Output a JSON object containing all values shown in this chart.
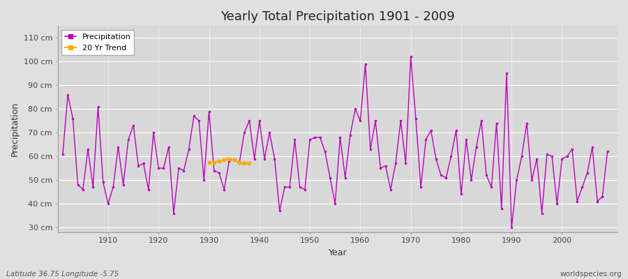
{
  "title": "Yearly Total Precipitation 1901 - 2009",
  "xlabel": "Year",
  "ylabel": "Precipitation",
  "bg_color": "#e0e0e0",
  "plot_bg_color": "#d8d8d8",
  "line_color": "#bb00bb",
  "trend_color": "#ffaa00",
  "legend_labels": [
    "Precipitation",
    "20 Yr Trend"
  ],
  "ylim": [
    28,
    115
  ],
  "yticks": [
    30,
    40,
    50,
    60,
    70,
    80,
    90,
    100,
    110
  ],
  "ytick_labels": [
    "30 cm",
    "40 cm",
    "50 cm",
    "60 cm",
    "70 cm",
    "80 cm",
    "90 cm",
    "100 cm",
    "110 cm"
  ],
  "footer_left": "Latitude 36.75 Longitude -5.75",
  "footer_right": "worldspecies.org",
  "years": [
    1901,
    1902,
    1903,
    1904,
    1905,
    1906,
    1907,
    1908,
    1909,
    1910,
    1911,
    1912,
    1913,
    1914,
    1915,
    1916,
    1917,
    1918,
    1919,
    1920,
    1921,
    1922,
    1923,
    1924,
    1925,
    1926,
    1927,
    1928,
    1929,
    1930,
    1931,
    1932,
    1933,
    1934,
    1935,
    1936,
    1937,
    1938,
    1939,
    1940,
    1941,
    1942,
    1943,
    1944,
    1945,
    1946,
    1947,
    1948,
    1949,
    1950,
    1951,
    1952,
    1953,
    1954,
    1955,
    1956,
    1957,
    1958,
    1959,
    1960,
    1961,
    1962,
    1963,
    1964,
    1965,
    1966,
    1967,
    1968,
    1969,
    1970,
    1971,
    1972,
    1973,
    1974,
    1975,
    1976,
    1977,
    1978,
    1979,
    1980,
    1981,
    1982,
    1983,
    1984,
    1985,
    1986,
    1987,
    1988,
    1989,
    1990,
    1991,
    1992,
    1993,
    1994,
    1995,
    1996,
    1997,
    1998,
    1999,
    2000,
    2001,
    2002,
    2003,
    2004,
    2005,
    2006,
    2007,
    2008,
    2009
  ],
  "precip": [
    61,
    86,
    76,
    48,
    46,
    63,
    47,
    81,
    49,
    40,
    47,
    64,
    48,
    67,
    73,
    56,
    57,
    46,
    70,
    55,
    55,
    64,
    36,
    55,
    54,
    63,
    77,
    75,
    50,
    79,
    54,
    53,
    46,
    58,
    59,
    57,
    70,
    75,
    59,
    75,
    59,
    70,
    59,
    37,
    47,
    47,
    67,
    47,
    46,
    67,
    68,
    68,
    62,
    51,
    40,
    68,
    51,
    69,
    80,
    75,
    99,
    63,
    75,
    55,
    56,
    46,
    57,
    75,
    57,
    102,
    76,
    47,
    67,
    71,
    59,
    52,
    51,
    60,
    71,
    44,
    67,
    50,
    64,
    75,
    52,
    47,
    74,
    38,
    95,
    30,
    50,
    60,
    74,
    50,
    59,
    36,
    61,
    60,
    40,
    59,
    60,
    63,
    41,
    47,
    53,
    64,
    41,
    43,
    62
  ],
  "trend_years": [
    1930,
    1931,
    1932,
    1933,
    1934,
    1935,
    1936,
    1937,
    1938
  ],
  "trend_values": [
    57.5,
    57.5,
    58.0,
    58.5,
    59.0,
    58.5,
    57.5,
    57.0,
    57.0
  ]
}
